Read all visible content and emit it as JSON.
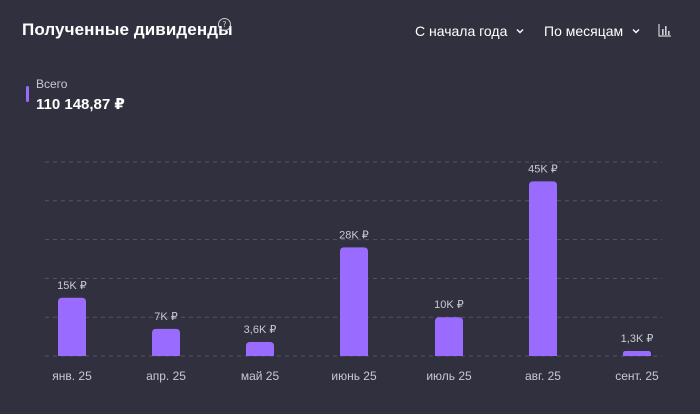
{
  "header": {
    "title": "Полученные дивиденды",
    "help_icon": "question-circle-icon",
    "help_glyph": "?",
    "period_label": "С начала года",
    "grouping_label": "По месяцам",
    "chart_type_icon": "bar-chart-icon"
  },
  "summary": {
    "label": "Всего",
    "value": "110 148,87 ₽"
  },
  "colors": {
    "background": "#30303e",
    "bar": "#9a6bff",
    "grid": "#55556a",
    "label": "#c9c9d3"
  },
  "chart_data": {
    "type": "bar",
    "categories": [
      "янв. 25",
      "апр. 25",
      "май 25",
      "июнь 25",
      "июль 25",
      "авг. 25",
      "сент. 25"
    ],
    "values": [
      15000,
      7000,
      3600,
      28000,
      10000,
      45000,
      1300
    ],
    "data_labels": [
      "15K ₽",
      "7K ₽",
      "3,6K ₽",
      "28K ₽",
      "10K ₽",
      "45K ₽",
      "1,3K ₽"
    ],
    "ylim": [
      0,
      50000
    ],
    "grid": true,
    "gridlines": [
      0,
      10000,
      20000,
      30000,
      40000,
      50000
    ]
  }
}
